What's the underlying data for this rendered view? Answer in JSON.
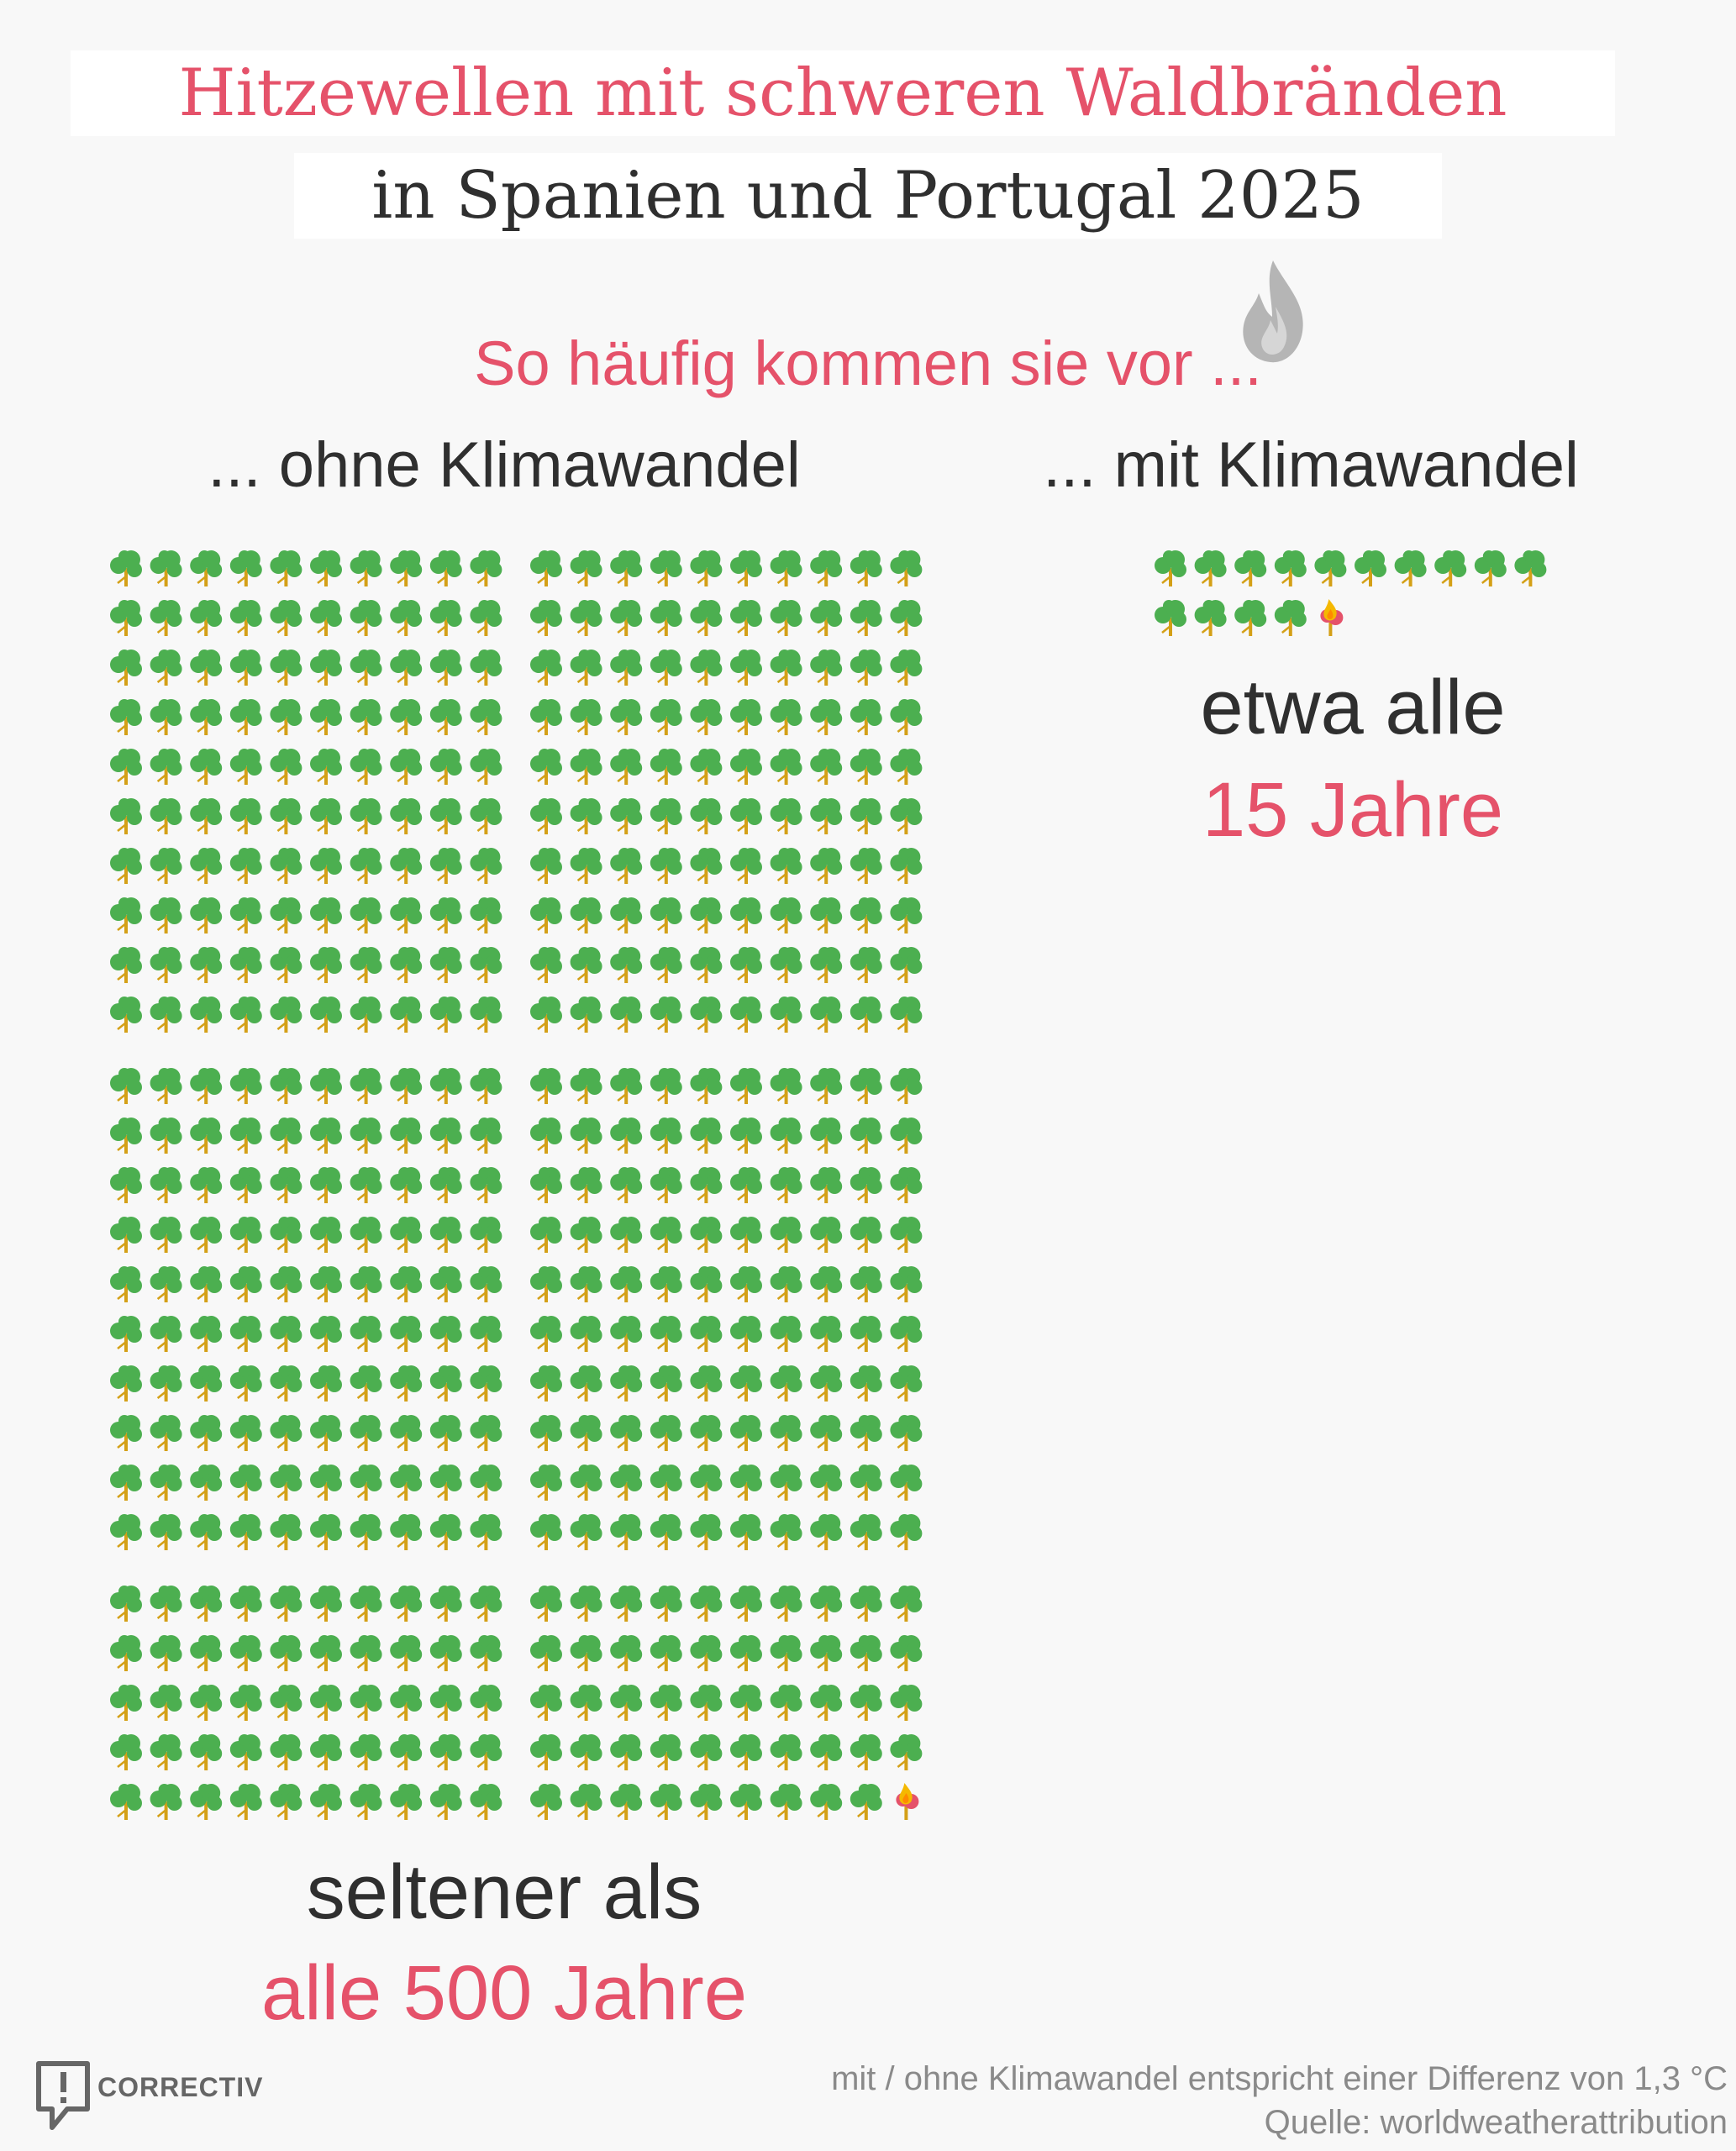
{
  "title": {
    "line1": "Hitzewellen mit schweren Waldbränden",
    "line2": "in Spanien und Portugal 2025"
  },
  "subtitle": "So häufig kommen sie vor ...",
  "chart_data": {
    "type": "pictogram",
    "unit": "tree (1 year)",
    "series": [
      {
        "label": "... ohne Klimawandel",
        "icons_total": 500,
        "burning_icons": 1,
        "summary_line1": "seltener als",
        "summary_line2": "alle 500 Jahre"
      },
      {
        "label": "... mit Klimawandel",
        "icons_total": 15,
        "burning_icons": 1,
        "summary_line1": "etwa alle",
        "summary_line2": "15 Jahre"
      }
    ]
  },
  "footer": {
    "brand": "CORRECTIV",
    "note": "mit / ohne Klimawandel entspricht einer Differenz von 1,3 °C",
    "source": "Quelle: worldweatherattribution"
  },
  "colors": {
    "accent": "#e5526a",
    "text": "#2f2f2f",
    "tree_crown": "#4caf50",
    "tree_trunk": "#d4a017",
    "flame": "#e5526a"
  },
  "icons": {
    "tree": "tree-icon",
    "burning_tree": "burning-tree-icon",
    "flame": "flame-icon",
    "logo": "correctiv-logo-icon"
  }
}
